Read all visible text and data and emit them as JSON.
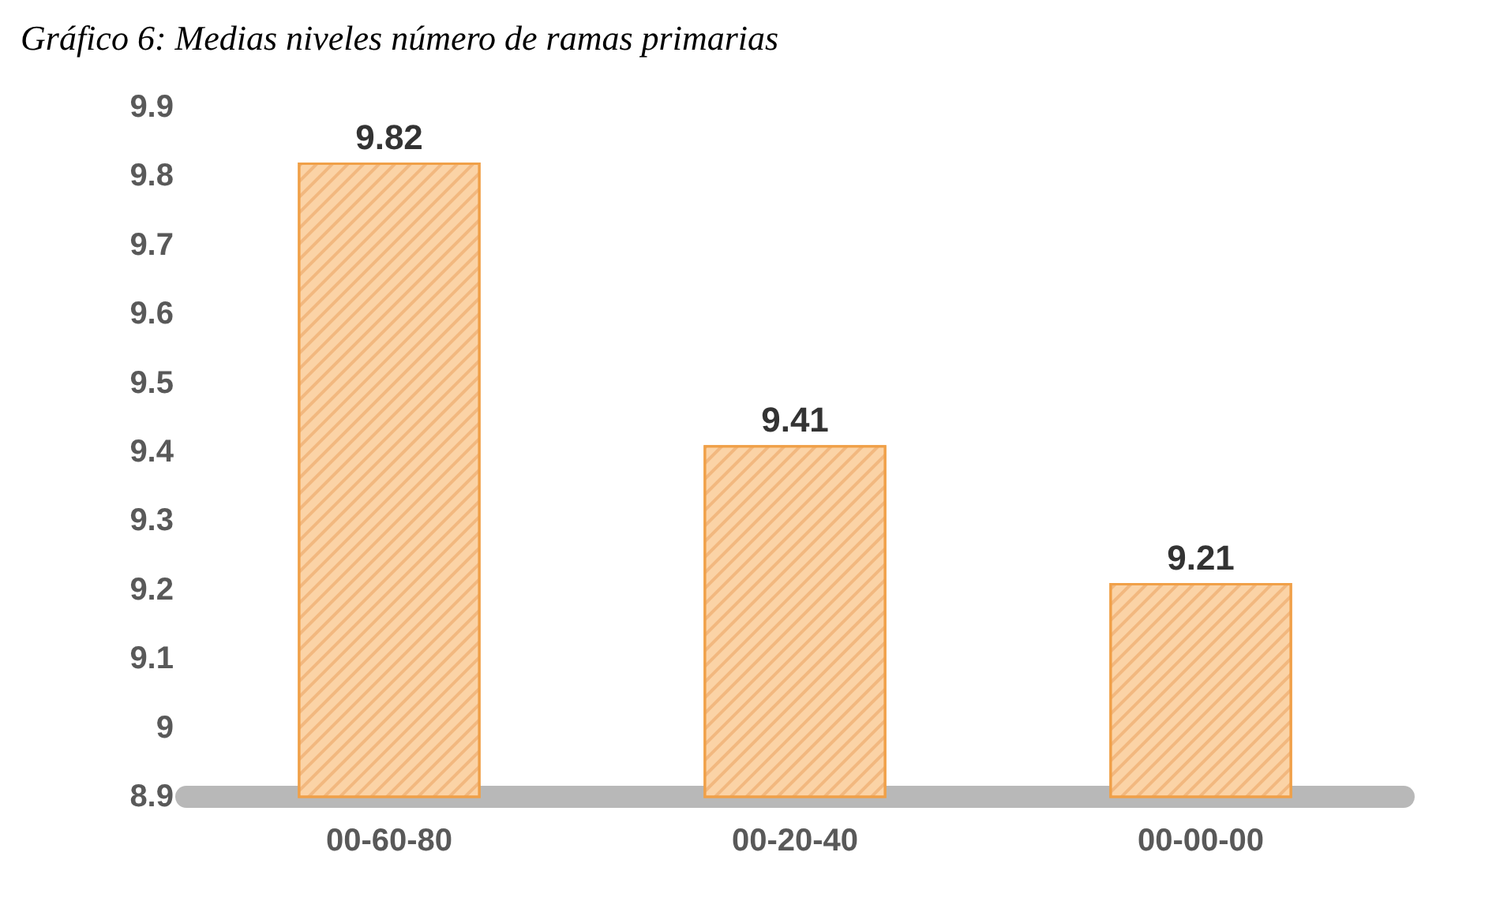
{
  "chart_data": {
    "type": "bar",
    "title": "Gráfico 6: Medias niveles número de ramas primarias",
    "categories": [
      "00-60-80",
      "00-20-40",
      "00-00-00"
    ],
    "values": [
      9.82,
      9.41,
      9.21
    ],
    "color": "#fbd3a6",
    "ylim": [
      8.9,
      9.9
    ],
    "yticks": [
      8.9,
      9,
      9.1,
      9.2,
      9.3,
      9.4,
      9.5,
      9.6,
      9.7,
      9.8,
      9.9
    ],
    "data_labels": true
  }
}
